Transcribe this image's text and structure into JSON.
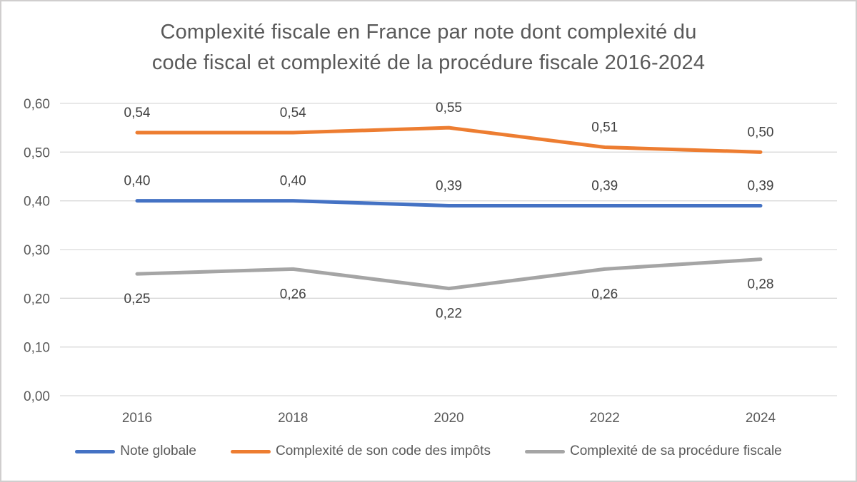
{
  "chart_data": {
    "type": "line",
    "title": "Complexité fiscale en France par note dont complexité du code fiscal et complexité de la procédure fiscale 2016-2024",
    "title_lines": [
      "Complexité fiscale en France par note dont complexité du",
      "code fiscal et complexité de la procédure fiscale 2016-2024"
    ],
    "categories": [
      "2016",
      "2018",
      "2020",
      "2022",
      "2024"
    ],
    "series": [
      {
        "name": "Note globale",
        "color": "#4472C4",
        "values": [
          0.4,
          0.4,
          0.39,
          0.39,
          0.39
        ],
        "data_labels": [
          "0,40",
          "0,40",
          "0,39",
          "0,39",
          "0,39"
        ],
        "label_position": "above"
      },
      {
        "name": "Complexité de son code des impôts",
        "color": "#ED7D31",
        "values": [
          0.54,
          0.54,
          0.55,
          0.51,
          0.5
        ],
        "data_labels": [
          "0,54",
          "0,54",
          "0,55",
          "0,51",
          "0,50"
        ],
        "label_position": "above"
      },
      {
        "name": "Complexité de sa procédure fiscale",
        "color": "#A5A5A5",
        "values": [
          0.25,
          0.26,
          0.22,
          0.26,
          0.28
        ],
        "data_labels": [
          "0,25",
          "0,26",
          "0,22",
          "0,26",
          "0,28"
        ],
        "label_position": "below"
      }
    ],
    "y_axis": {
      "min": 0.0,
      "max": 0.6,
      "tick_step": 0.1,
      "tick_labels": [
        "0,00",
        "0,10",
        "0,20",
        "0,30",
        "0,40",
        "0,50",
        "0,60"
      ]
    },
    "decimal_separator": ",",
    "grid": true,
    "legend_position": "bottom",
    "colors": {
      "gridline": "#D9D9D9",
      "axis_text": "#595959",
      "data_label_text": "#404040",
      "title_text": "#595959",
      "frame_border": "#D0CECE",
      "background": "#FFFFFF"
    }
  }
}
